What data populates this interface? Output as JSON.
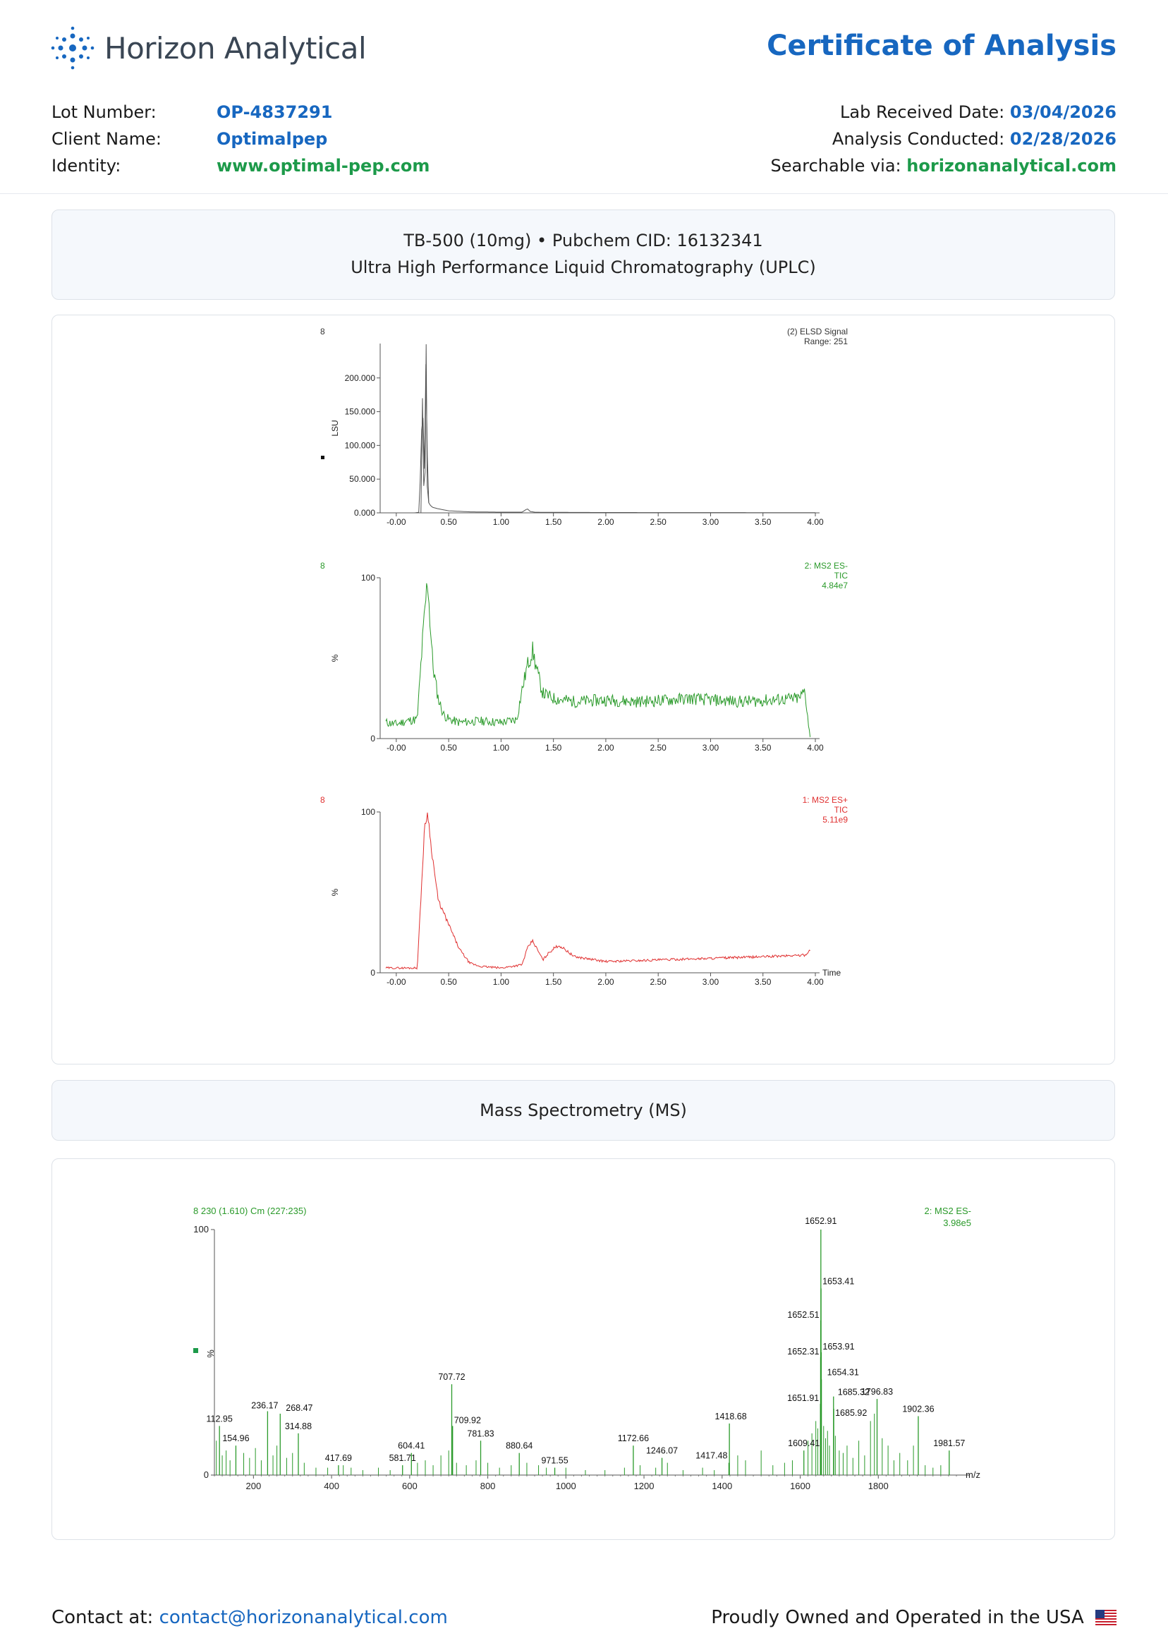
{
  "header": {
    "brand": "Horizon Analytical",
    "title": "Certificate of Analysis",
    "left": [
      {
        "label": "Lot Number:",
        "value": "OP-4837291",
        "color": "blue"
      },
      {
        "label": "Client Name:",
        "value": "Optimalpep",
        "color": "blue"
      },
      {
        "label": "Identity:",
        "value": "www.optimal-pep.com",
        "color": "green"
      }
    ],
    "right": [
      {
        "label": "Lab Received Date:",
        "value": "03/04/2026",
        "color": "blue"
      },
      {
        "label": "Analysis Conducted:",
        "value": "02/28/2026",
        "color": "blue"
      },
      {
        "label": "Searchable via:",
        "value": "horizonanalytical.com",
        "color": "green"
      }
    ]
  },
  "section1": {
    "line1": "TB-500 (10mg) • Pubchem CID: 16132341",
    "line2": "Ultra High Performance Liquid Chromatography (UPLC)"
  },
  "section2": {
    "title": "Mass Spectrometry (MS)"
  },
  "footer": {
    "contact_label": "Contact at:",
    "contact_email": "contact@horizonanalytical.com",
    "tagline": "Proudly Owned and Operated in the USA"
  },
  "colors": {
    "brand_blue": "#1767c0",
    "brand_green": "#1d9a4a",
    "trace_elsd": "#555555",
    "trace_es_minus": "#2a9a2a",
    "trace_es_plus": "#e03030"
  },
  "chart_data": [
    {
      "type": "line",
      "sample_id": "8",
      "title": "(2) ELSD Signal",
      "subtitle": "Range: 251",
      "ylabel": "LSU",
      "ylim": [
        0,
        251
      ],
      "xlim": [
        -0.1,
        4.0
      ],
      "x_ticks": [
        "-0.00",
        "0.50",
        "1.00",
        "1.50",
        "2.00",
        "2.50",
        "3.00",
        "3.50",
        "4.00"
      ],
      "y_ticks": [
        "0.000",
        "50.000",
        "100.000",
        "150.000",
        "200.000"
      ],
      "x": [
        -0.1,
        0.18,
        0.22,
        0.25,
        0.27,
        0.285,
        0.3,
        0.31,
        0.33,
        0.35,
        0.4,
        0.5,
        0.7,
        1.0,
        1.2,
        1.25,
        1.28,
        1.32,
        1.4,
        2.0,
        3.0,
        4.0
      ],
      "y": [
        0,
        0,
        1,
        170,
        60,
        250,
        30,
        15,
        10,
        8,
        6,
        3,
        1.5,
        1,
        1,
        6,
        2,
        1,
        0.8,
        0.5,
        0.4,
        0.3
      ]
    },
    {
      "type": "line",
      "sample_id": "8",
      "title": "2: MS2 ES-",
      "subtitle": "TIC",
      "intensity": "4.84e7",
      "ylabel": "%",
      "ylim": [
        0,
        100
      ],
      "xlim": [
        -0.1,
        4.0
      ],
      "x_ticks": [
        "-0.00",
        "0.50",
        "1.00",
        "1.50",
        "2.00",
        "2.50",
        "3.00",
        "3.50",
        "4.00"
      ],
      "y_ticks": [
        "0",
        "100"
      ],
      "x": [
        -0.1,
        0.0,
        0.1,
        0.2,
        0.25,
        0.28,
        0.3,
        0.32,
        0.35,
        0.4,
        0.45,
        0.5,
        0.6,
        0.8,
        1.0,
        1.15,
        1.2,
        1.25,
        1.3,
        1.35,
        1.4,
        1.5,
        1.7,
        2.0,
        2.3,
        2.6,
        2.8,
        3.0,
        3.3,
        3.6,
        3.85,
        3.9,
        3.95
      ],
      "y": [
        10,
        9,
        11,
        12,
        60,
        85,
        100,
        75,
        45,
        25,
        15,
        12,
        10,
        11,
        10,
        12,
        30,
        45,
        55,
        40,
        28,
        25,
        23,
        24,
        23,
        24,
        25,
        24,
        23,
        24,
        25,
        30,
        0
      ]
    },
    {
      "type": "line",
      "sample_id": "8",
      "title": "1: MS2 ES+",
      "subtitle": "TIC",
      "intensity": "5.11e9",
      "ylabel": "%",
      "xlabel": "Time",
      "ylim": [
        0,
        100
      ],
      "xlim": [
        -0.1,
        4.0
      ],
      "x_ticks": [
        "-0.00",
        "0.50",
        "1.00",
        "1.50",
        "2.00",
        "2.50",
        "3.00",
        "3.50",
        "4.00"
      ],
      "y_ticks": [
        "0",
        "100"
      ],
      "x": [
        -0.1,
        0.1,
        0.2,
        0.23,
        0.27,
        0.3,
        0.33,
        0.4,
        0.5,
        0.6,
        0.7,
        0.8,
        1.0,
        1.2,
        1.25,
        1.3,
        1.35,
        1.4,
        1.45,
        1.5,
        1.55,
        1.6,
        1.7,
        2.0,
        2.5,
        3.0,
        3.5,
        3.9,
        3.95
      ],
      "y": [
        3,
        3,
        3,
        40,
        90,
        100,
        80,
        45,
        30,
        15,
        6,
        4,
        3,
        5,
        15,
        20,
        14,
        8,
        12,
        15,
        17,
        15,
        10,
        7,
        8,
        9,
        10,
        11,
        14
      ]
    },
    {
      "type": "bar",
      "header": "8 230 (1.610) Cm (227:235)",
      "title": "2: MS2 ES-",
      "intensity": "3.98e5",
      "ylabel": "%",
      "xlabel": "m/z",
      "xlim": [
        100,
        2000
      ],
      "ylim": [
        0,
        100
      ],
      "x_ticks": [
        "200",
        "400",
        "600",
        "800",
        "1000",
        "1200",
        "1400",
        "1600",
        "1800"
      ],
      "y_ticks": [
        "0",
        "100"
      ],
      "peaks": [
        {
          "mz": 112.95,
          "label": "112.95",
          "value": 20
        },
        {
          "mz": 154.96,
          "label": "154.96",
          "value": 12
        },
        {
          "mz": 236.17,
          "label": "236.17",
          "value": 26
        },
        {
          "mz": 268.47,
          "label": "268.47",
          "value": 25
        },
        {
          "mz": 314.88,
          "label": "314.88",
          "value": 17
        },
        {
          "mz": 417.69,
          "label": "417.69",
          "value": 4
        },
        {
          "mz": 581.71,
          "label": "581.71",
          "value": 4
        },
        {
          "mz": 604.41,
          "label": "604.41",
          "value": 9
        },
        {
          "mz": 707.72,
          "label": "707.72",
          "value": 37
        },
        {
          "mz": 709.92,
          "label": "709.92",
          "value": 20
        },
        {
          "mz": 781.83,
          "label": "781.83",
          "value": 14
        },
        {
          "mz": 880.64,
          "label": "880.64",
          "value": 9
        },
        {
          "mz": 971.55,
          "label": "971.55",
          "value": 3
        },
        {
          "mz": 1172.66,
          "label": "1172.66",
          "value": 12
        },
        {
          "mz": 1246.07,
          "label": "1246.07",
          "value": 7
        },
        {
          "mz": 1417.48,
          "label": "1417.48",
          "value": 5
        },
        {
          "mz": 1418.68,
          "label": "1418.68",
          "value": 21
        },
        {
          "mz": 1609.41,
          "label": "1609.41",
          "value": 10
        },
        {
          "mz": 1651.91,
          "label": "1651.91",
          "value": 29
        },
        {
          "mz": 1652.31,
          "label": "1652.31",
          "value": 48
        },
        {
          "mz": 1652.51,
          "label": "1652.51",
          "value": 63
        },
        {
          "mz": 1652.91,
          "label": "1652.91",
          "value": 100
        },
        {
          "mz": 1653.41,
          "label": "1653.41",
          "value": 76
        },
        {
          "mz": 1653.91,
          "label": "1653.91",
          "value": 50
        },
        {
          "mz": 1654.31,
          "label": "1654.31",
          "value": 39
        },
        {
          "mz": 1685.32,
          "label": "1685.32",
          "value": 32
        },
        {
          "mz": 1685.92,
          "label": "1685.92",
          "value": 27
        },
        {
          "mz": 1796.83,
          "label": "1796.83",
          "value": 31
        },
        {
          "mz": 1902.36,
          "label": "1902.36",
          "value": 24
        },
        {
          "mz": 1981.57,
          "label": "1981.57",
          "value": 10
        }
      ],
      "minor_peaks": [
        {
          "mz": 105,
          "value": 14
        },
        {
          "mz": 120,
          "value": 8
        },
        {
          "mz": 130,
          "value": 10
        },
        {
          "mz": 140,
          "value": 6
        },
        {
          "mz": 175,
          "value": 9
        },
        {
          "mz": 190,
          "value": 7
        },
        {
          "mz": 205,
          "value": 11
        },
        {
          "mz": 220,
          "value": 6
        },
        {
          "mz": 250,
          "value": 8
        },
        {
          "mz": 260,
          "value": 12
        },
        {
          "mz": 285,
          "value": 7
        },
        {
          "mz": 300,
          "value": 9
        },
        {
          "mz": 330,
          "value": 5
        },
        {
          "mz": 360,
          "value": 3
        },
        {
          "mz": 390,
          "value": 3
        },
        {
          "mz": 430,
          "value": 4
        },
        {
          "mz": 450,
          "value": 3
        },
        {
          "mz": 480,
          "value": 2
        },
        {
          "mz": 520,
          "value": 3
        },
        {
          "mz": 550,
          "value": 2
        },
        {
          "mz": 620,
          "value": 5
        },
        {
          "mz": 640,
          "value": 6
        },
        {
          "mz": 660,
          "value": 4
        },
        {
          "mz": 680,
          "value": 8
        },
        {
          "mz": 700,
          "value": 10
        },
        {
          "mz": 720,
          "value": 5
        },
        {
          "mz": 745,
          "value": 4
        },
        {
          "mz": 770,
          "value": 6
        },
        {
          "mz": 800,
          "value": 5
        },
        {
          "mz": 830,
          "value": 3
        },
        {
          "mz": 860,
          "value": 4
        },
        {
          "mz": 900,
          "value": 5
        },
        {
          "mz": 930,
          "value": 4
        },
        {
          "mz": 950,
          "value": 3
        },
        {
          "mz": 1000,
          "value": 3
        },
        {
          "mz": 1050,
          "value": 2
        },
        {
          "mz": 1100,
          "value": 2
        },
        {
          "mz": 1150,
          "value": 3
        },
        {
          "mz": 1190,
          "value": 4
        },
        {
          "mz": 1230,
          "value": 3
        },
        {
          "mz": 1260,
          "value": 5
        },
        {
          "mz": 1300,
          "value": 2
        },
        {
          "mz": 1350,
          "value": 3
        },
        {
          "mz": 1380,
          "value": 2
        },
        {
          "mz": 1440,
          "value": 8
        },
        {
          "mz": 1460,
          "value": 6
        },
        {
          "mz": 1500,
          "value": 10
        },
        {
          "mz": 1530,
          "value": 4
        },
        {
          "mz": 1560,
          "value": 5
        },
        {
          "mz": 1580,
          "value": 6
        },
        {
          "mz": 1620,
          "value": 14
        },
        {
          "mz": 1630,
          "value": 17
        },
        {
          "mz": 1640,
          "value": 22
        },
        {
          "mz": 1645,
          "value": 19
        },
        {
          "mz": 1660,
          "value": 20
        },
        {
          "mz": 1665,
          "value": 15
        },
        {
          "mz": 1670,
          "value": 18
        },
        {
          "mz": 1675,
          "value": 12
        },
        {
          "mz": 1690,
          "value": 16
        },
        {
          "mz": 1700,
          "value": 10
        },
        {
          "mz": 1710,
          "value": 9
        },
        {
          "mz": 1720,
          "value": 12
        },
        {
          "mz": 1735,
          "value": 7
        },
        {
          "mz": 1750,
          "value": 14
        },
        {
          "mz": 1765,
          "value": 8
        },
        {
          "mz": 1780,
          "value": 22
        },
        {
          "mz": 1790,
          "value": 25
        },
        {
          "mz": 1810,
          "value": 15
        },
        {
          "mz": 1825,
          "value": 12
        },
        {
          "mz": 1840,
          "value": 6
        },
        {
          "mz": 1855,
          "value": 9
        },
        {
          "mz": 1875,
          "value": 6
        },
        {
          "mz": 1890,
          "value": 12
        },
        {
          "mz": 1920,
          "value": 4
        },
        {
          "mz": 1940,
          "value": 3
        },
        {
          "mz": 1960,
          "value": 4
        }
      ]
    }
  ]
}
